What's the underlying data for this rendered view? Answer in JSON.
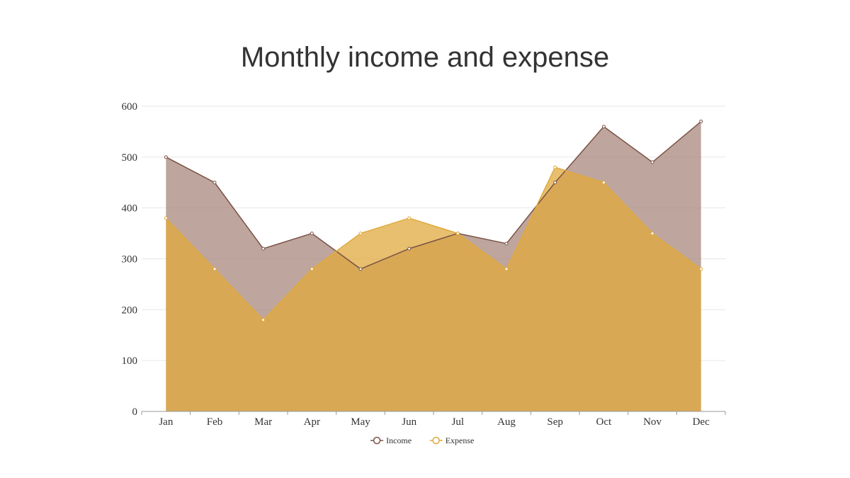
{
  "chart_data": {
    "type": "area",
    "title": "Monthly income and expense",
    "xlabel": "",
    "ylabel": "",
    "categories": [
      "Jan",
      "Feb",
      "Mar",
      "Apr",
      "May",
      "Jun",
      "Jul",
      "Aug",
      "Sep",
      "Oct",
      "Nov",
      "Dec"
    ],
    "y_ticks": [
      "0",
      "100",
      "200",
      "300",
      "400",
      "500",
      "600"
    ],
    "ylim": [
      0,
      600
    ],
    "grid": true,
    "legend_position": "bottom-center",
    "series": [
      {
        "name": "Income",
        "color": "#7b5346",
        "fill_color": "#a8877c",
        "values": [
          500,
          450,
          320,
          350,
          280,
          320,
          350,
          330,
          450,
          560,
          490,
          570
        ]
      },
      {
        "name": "Expense",
        "color": "#e0aa3e",
        "fill_color": "#e0aa3e",
        "values": [
          380,
          280,
          180,
          280,
          350,
          380,
          350,
          280,
          480,
          450,
          350,
          280
        ]
      }
    ]
  }
}
